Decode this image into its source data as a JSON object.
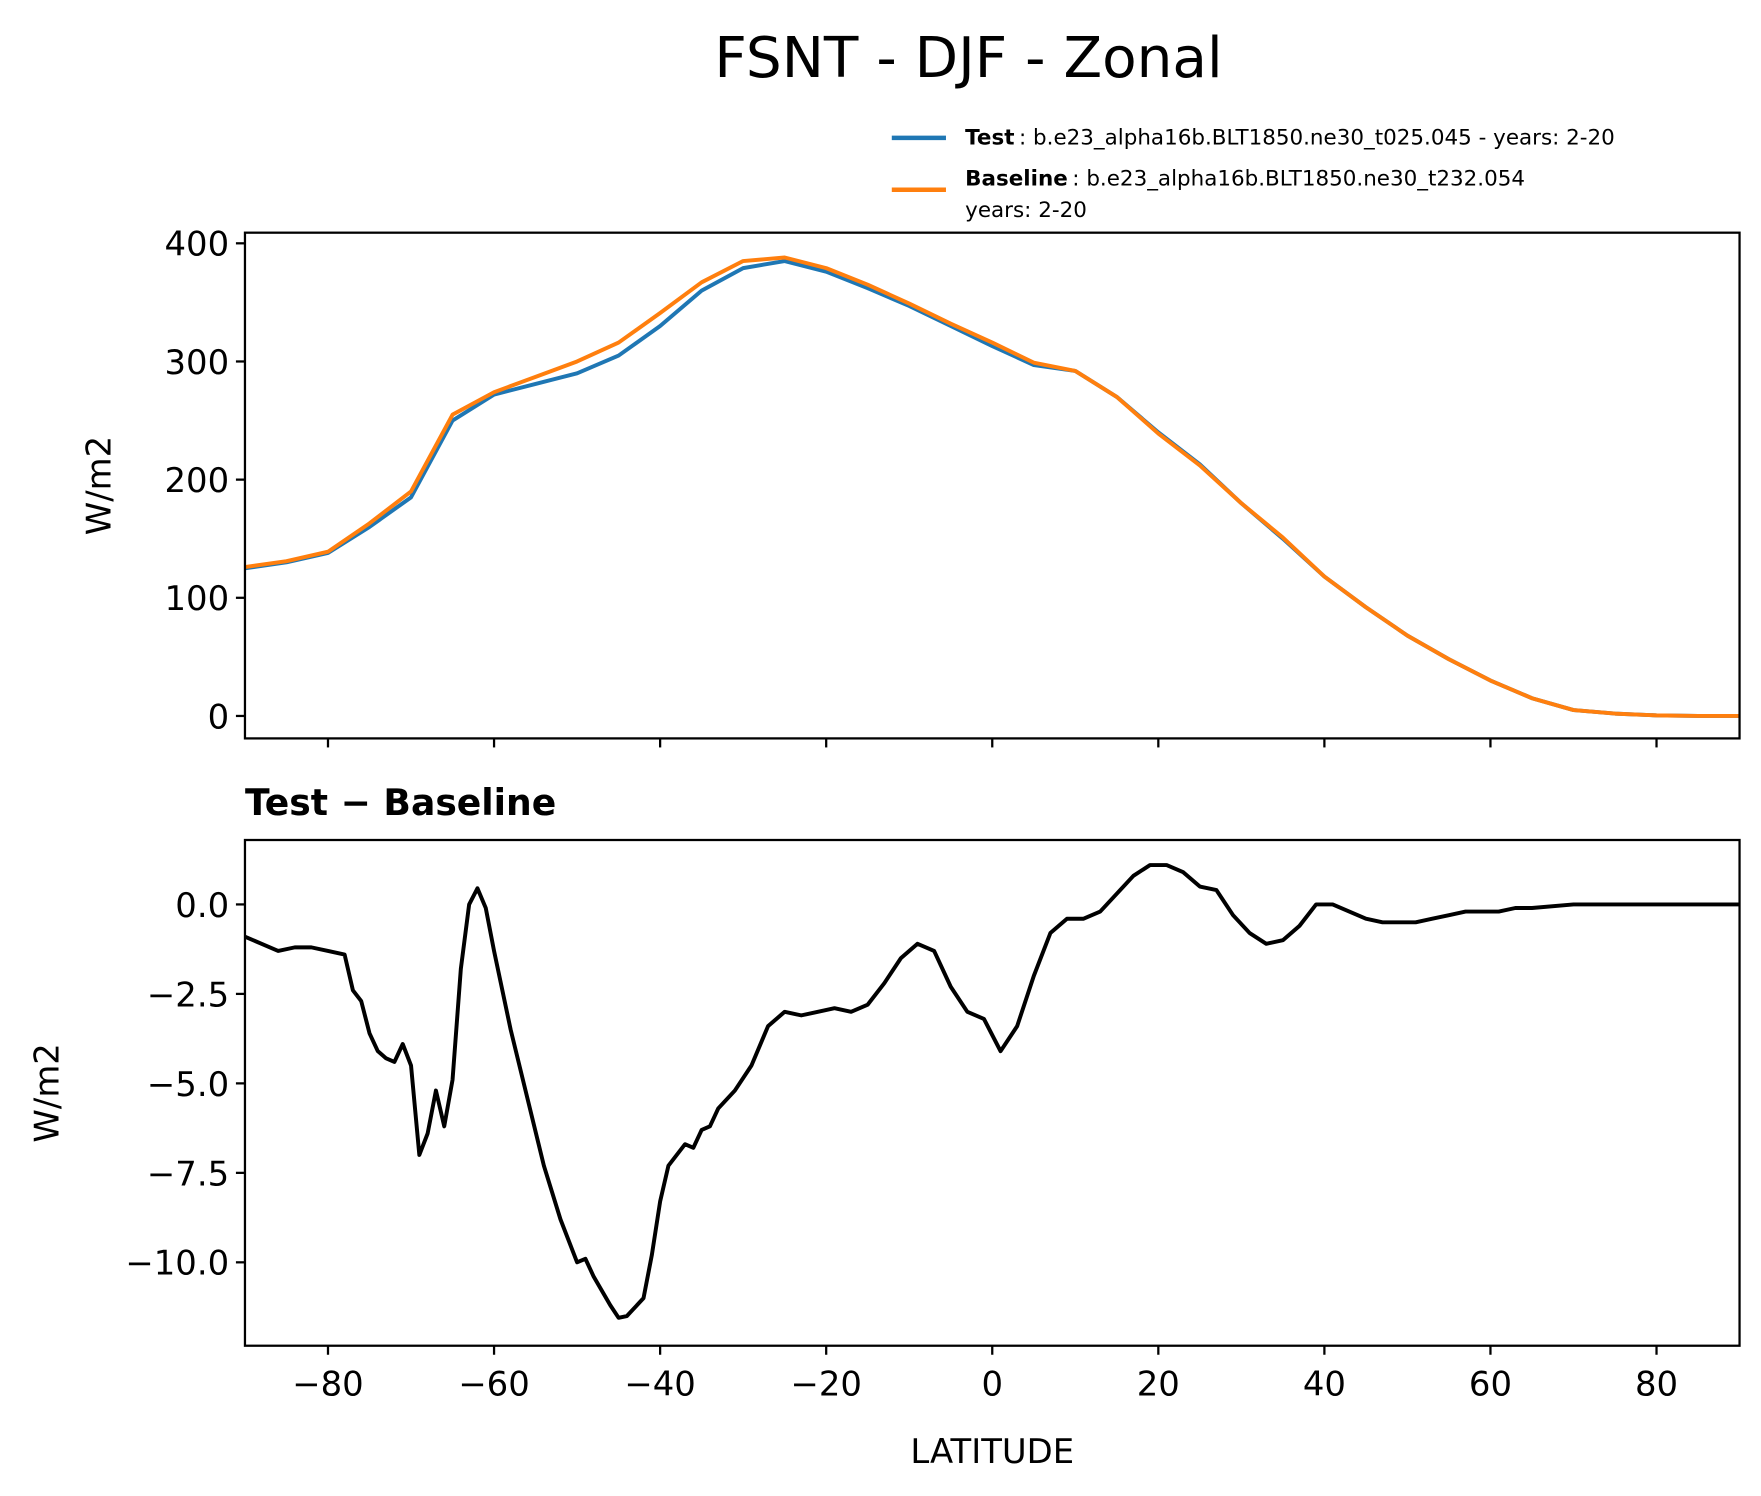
{
  "chart_data": [
    {
      "type": "line",
      "title": "FSNT - DJF - Zonal",
      "ylabel": "W/m2",
      "x": [
        -90,
        -85,
        -80,
        -75,
        -70,
        -65,
        -60,
        -55,
        -50,
        -45,
        -40,
        -35,
        -30,
        -25,
        -20,
        -15,
        -10,
        -5,
        0,
        5,
        10,
        15,
        20,
        25,
        30,
        35,
        40,
        45,
        50,
        55,
        60,
        65,
        70,
        75,
        80,
        85,
        90
      ],
      "series": [
        {
          "name": "Test",
          "legend_lines": [
            ": b.e23_alpha16b.BLT1850.ne30_t025.045 - years: 2-20"
          ],
          "color": "#1f77b4",
          "values": [
            125,
            130,
            138,
            160,
            185,
            250,
            272,
            281,
            290,
            305,
            330,
            360,
            379,
            385,
            376,
            362,
            347,
            330,
            313,
            297,
            292,
            270,
            240,
            213,
            180,
            150,
            118,
            92,
            68,
            48,
            30,
            15,
            5,
            2,
            0.5,
            0,
            0
          ]
        },
        {
          "name": "Baseline",
          "legend_lines": [
            ": b.e23_alpha16b.BLT1850.ne30_t232.054",
            "years: 2-20"
          ],
          "color": "#ff7f0e",
          "values": [
            126,
            131,
            139,
            163,
            190,
            255,
            274,
            287,
            300,
            316,
            341,
            367,
            385,
            388,
            379,
            365,
            349,
            332,
            316,
            299,
            292,
            270,
            239,
            212,
            180,
            151,
            118,
            92,
            68,
            48,
            30,
            15,
            5,
            2,
            0.5,
            0,
            0
          ]
        }
      ],
      "xlim": [
        -90,
        90
      ],
      "xticks": [
        -80,
        -60,
        -40,
        -20,
        0,
        20,
        40,
        60,
        80
      ],
      "ylim": [
        -19,
        409
      ],
      "yticks": [
        0,
        100,
        200,
        300,
        400
      ]
    },
    {
      "type": "line",
      "title": "Test − Baseline",
      "xlabel": "LATITUDE",
      "ylabel": "W/m2",
      "x": [
        -90,
        -88,
        -86,
        -84,
        -82,
        -80,
        -78,
        -77,
        -76,
        -75,
        -74,
        -73,
        -72,
        -71,
        -70,
        -69,
        -68,
        -67,
        -66,
        -65,
        -64,
        -63,
        -62,
        -61,
        -60,
        -58,
        -56,
        -54,
        -52,
        -50,
        -49,
        -48,
        -46,
        -45,
        -44,
        -42,
        -41,
        -40,
        -39,
        -37,
        -36,
        -35,
        -34,
        -33,
        -31,
        -29,
        -27,
        -25,
        -23,
        -21,
        -19,
        -17,
        -15,
        -13,
        -11,
        -9,
        -7,
        -5,
        -3,
        -1,
        1,
        3,
        5,
        7,
        9,
        11,
        13,
        15,
        17,
        19,
        21,
        23,
        25,
        27,
        29,
        31,
        33,
        35,
        37,
        39,
        41,
        43,
        45,
        47,
        49,
        51,
        53,
        55,
        57,
        59,
        61,
        63,
        65,
        70,
        75,
        80,
        85,
        90
      ],
      "series": [
        {
          "color": "#000000",
          "values": [
            -0.9,
            -1.1,
            -1.3,
            -1.2,
            -1.2,
            -1.3,
            -1.4,
            -2.4,
            -2.7,
            -3.6,
            -4.1,
            -4.3,
            -4.4,
            -3.9,
            -4.5,
            -7.0,
            -6.4,
            -5.2,
            -6.2,
            -4.9,
            -1.8,
            0.0,
            0.45,
            -0.1,
            -1.3,
            -3.5,
            -5.4,
            -7.3,
            -8.8,
            -10.0,
            -9.9,
            -10.4,
            -11.2,
            -11.55,
            -11.5,
            -11.0,
            -9.8,
            -8.3,
            -7.3,
            -6.7,
            -6.8,
            -6.3,
            -6.2,
            -5.7,
            -5.2,
            -4.5,
            -3.4,
            -3.0,
            -3.1,
            -3.0,
            -2.9,
            -3.0,
            -2.8,
            -2.2,
            -1.5,
            -1.1,
            -1.3,
            -2.3,
            -3.0,
            -3.2,
            -4.1,
            -3.4,
            -2.0,
            -0.8,
            -0.4,
            -0.4,
            -0.2,
            0.3,
            0.8,
            1.1,
            1.1,
            0.9,
            0.5,
            0.4,
            -0.3,
            -0.8,
            -1.1,
            -1.0,
            -0.6,
            0.0,
            0.0,
            -0.2,
            -0.4,
            -0.5,
            -0.5,
            -0.5,
            -0.4,
            -0.3,
            -0.2,
            -0.2,
            -0.2,
            -0.1,
            -0.1,
            0.0,
            0.0,
            0.0,
            0.0,
            0.0
          ]
        }
      ],
      "xlim": [
        -90,
        90
      ],
      "xticks": [
        {
          "value": -80,
          "label": "−80"
        },
        {
          "value": -60,
          "label": "−60"
        },
        {
          "value": -40,
          "label": "−40"
        },
        {
          "value": -20,
          "label": "−20"
        },
        0,
        20,
        40,
        60,
        80
      ],
      "ylim": [
        -12.33,
        1.8
      ],
      "yticks": [
        {
          "value": 0,
          "label": "0.0"
        },
        {
          "value": -2.5,
          "label": "−2.5"
        },
        {
          "value": -5,
          "label": "−5.0"
        },
        {
          "value": -7.5,
          "label": "−7.5"
        },
        {
          "value": -10,
          "label": "−10.0"
        }
      ]
    }
  ]
}
